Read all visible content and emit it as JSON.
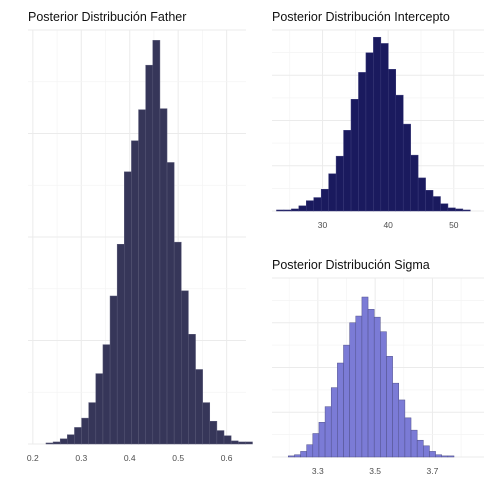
{
  "chart_data": [
    {
      "type": "histogram",
      "title": "Posterior Distribución Father",
      "xlabel": "",
      "ylabel": "",
      "xlim": [
        0.19,
        0.64
      ],
      "xticks": [
        0.2,
        0.3,
        0.4,
        0.5,
        0.6
      ],
      "xtick_labels": [
        "0.2",
        "0.3",
        "0.4",
        "0.5",
        "0.6"
      ],
      "bin_width": 0.0147,
      "bin_start": 0.2271,
      "fill_color": "#363659",
      "edge_color": "#5a5a78",
      "grid": true,
      "ylim": [
        0,
        400
      ],
      "counts": [
        1,
        2,
        5,
        9,
        16,
        25,
        40,
        68,
        96,
        143,
        193,
        263,
        293,
        323,
        366,
        390,
        324,
        272,
        195,
        148,
        106,
        72,
        40,
        22,
        13,
        8,
        3,
        2,
        2
      ]
    },
    {
      "type": "histogram",
      "title": "Posterior Distribución Intercepto",
      "xlabel": "",
      "ylabel": "",
      "xlim": [
        22.3,
        54.6
      ],
      "xticks": [
        30,
        40,
        50
      ],
      "xtick_labels": [
        "30",
        "40",
        "50"
      ],
      "bin_width": 1.136,
      "bin_start": 22.98,
      "fill_color": "#1a1a5e",
      "edge_color": "#3b3b7a",
      "grid": true,
      "ylim": [
        0,
        175
      ],
      "counts": [
        1,
        1,
        2,
        5,
        10,
        13,
        21,
        36,
        53,
        78,
        108,
        134,
        153,
        168,
        162,
        137,
        112,
        84,
        54,
        32,
        20,
        14,
        7,
        3,
        2,
        1
      ]
    },
    {
      "type": "histogram",
      "title": "Posterior Distribución Sigma",
      "xlabel": "",
      "ylabel": "",
      "xlim": [
        3.14,
        3.88
      ],
      "xticks": [
        3.3,
        3.5,
        3.7
      ],
      "xtick_labels": [
        "3.3",
        "3.5",
        "3.7"
      ],
      "bin_width": 0.02143,
      "bin_start": 3.1967,
      "fill_color": "#7b7bd6",
      "edge_color": "#50508a",
      "grid": true,
      "ylim": [
        0,
        160
      ],
      "counts": [
        1,
        2,
        5,
        11,
        21,
        31,
        45,
        62,
        84,
        100,
        120,
        126,
        143,
        132,
        125,
        112,
        90,
        66,
        51,
        35,
        24,
        15,
        10,
        5,
        2,
        1,
        1
      ]
    }
  ]
}
